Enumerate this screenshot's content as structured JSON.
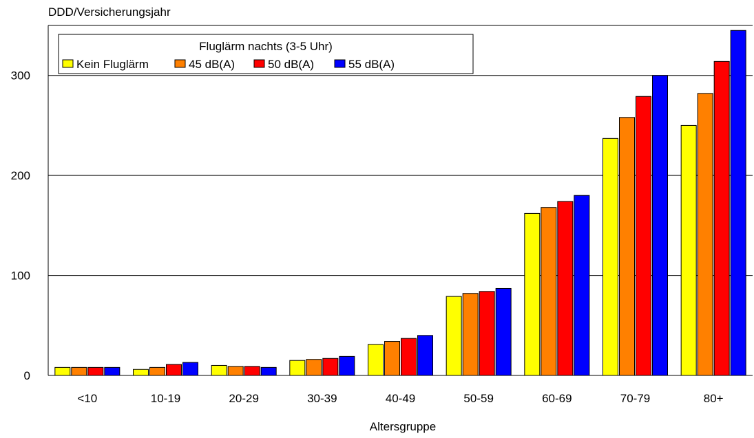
{
  "chart_data": {
    "type": "bar",
    "ylabel": "DDD/Versicherungsjahr",
    "xlabel": "Altersgruppe",
    "ylim": [
      0,
      350
    ],
    "yticks": [
      0,
      100,
      200,
      300
    ],
    "grid": true,
    "legend": {
      "title": "Fluglärm nachts (3-5 Uhr)",
      "placement": "top-left"
    },
    "categories": [
      "<10",
      "10-19",
      "20-29",
      "30-39",
      "40-49",
      "50-59",
      "60-69",
      "70-79",
      "80+"
    ],
    "series": [
      {
        "name": "Kein Fluglärm",
        "color": "#ffff00",
        "values": [
          8,
          6,
          10,
          15,
          31,
          79,
          162,
          237,
          250
        ]
      },
      {
        "name": "45 dB(A)",
        "color": "#ff8000",
        "values": [
          8,
          8,
          9,
          16,
          34,
          82,
          168,
          258,
          282
        ]
      },
      {
        "name": "50 dB(A)",
        "color": "#ff0000",
        "values": [
          8,
          11,
          9,
          17,
          37,
          84,
          174,
          279,
          314
        ]
      },
      {
        "name": "55 dB(A)",
        "color": "#0000ff",
        "values": [
          8,
          13,
          8,
          19,
          40,
          87,
          180,
          300,
          345
        ]
      }
    ]
  }
}
